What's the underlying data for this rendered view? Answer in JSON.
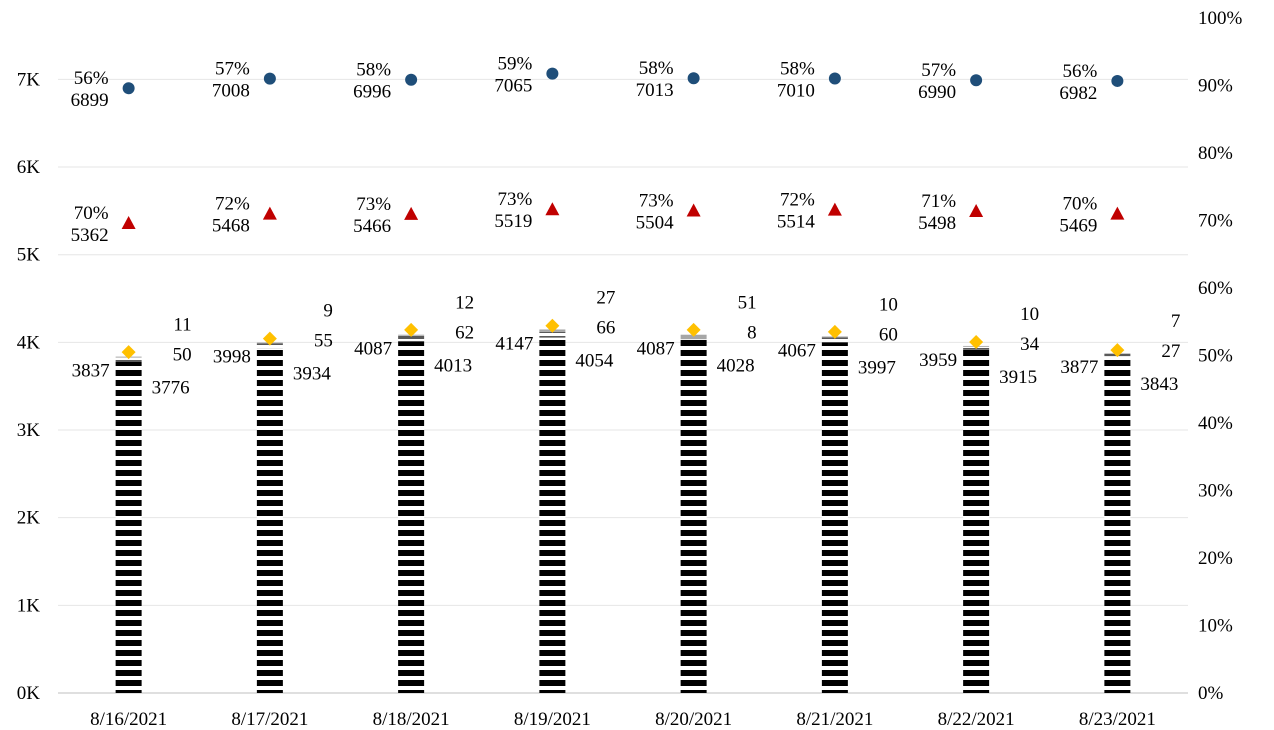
{
  "chart_data": {
    "type": "bar",
    "title": "",
    "xlabel": "",
    "ylabel": "",
    "categories": [
      "8/16/2021",
      "8/17/2021",
      "8/18/2021",
      "8/19/2021",
      "8/20/2021",
      "8/21/2021",
      "8/22/2021",
      "8/23/2021"
    ],
    "y_left": {
      "range": [
        0,
        7700
      ],
      "ticks": [
        0,
        1000,
        2000,
        3000,
        4000,
        5000,
        6000,
        7000
      ],
      "tick_labels": [
        "0K",
        "1K",
        "2K",
        "3K",
        "4K",
        "5K",
        "6K",
        "7K"
      ]
    },
    "y_right": {
      "range": [
        0,
        100
      ],
      "ticks": [
        0,
        10,
        20,
        30,
        40,
        50,
        60,
        70,
        80,
        90,
        100
      ],
      "tick_labels": [
        "0%",
        "10%",
        "20%",
        "30%",
        "40%",
        "50%",
        "60%",
        "70%",
        "80%",
        "90%",
        "100%"
      ]
    },
    "grid": true,
    "legend": "none",
    "bar_series": {
      "totals": [
        3837,
        3998,
        4087,
        4147,
        4087,
        4067,
        3959,
        3877
      ],
      "main": [
        3776,
        3934,
        4013,
        4054,
        4028,
        3997,
        3915,
        3843
      ],
      "middle": [
        50,
        55,
        62,
        66,
        8,
        60,
        34,
        27
      ],
      "top": [
        11,
        9,
        12,
        27,
        51,
        10,
        10,
        7
      ],
      "colors": {
        "main": "#000000",
        "middle": "#595959",
        "top": "#a6a6a6"
      }
    },
    "circle_series": {
      "values": [
        6899,
        7008,
        6996,
        7065,
        7013,
        7010,
        6990,
        6982
      ],
      "pct_labels": [
        "56%",
        "57%",
        "58%",
        "59%",
        "58%",
        "58%",
        "57%",
        "56%"
      ],
      "axis": "left",
      "color": "#1f4e79"
    },
    "triangle_series": {
      "values": [
        5362,
        5468,
        5466,
        5519,
        5504,
        5514,
        5498,
        5469
      ],
      "pct_labels": [
        "70%",
        "72%",
        "73%",
        "73%",
        "73%",
        "72%",
        "71%",
        "70%"
      ],
      "axis": "left",
      "color": "#c00000"
    },
    "diamond_series": {
      "values_pct": [
        50.5,
        52.5,
        53.8,
        54.4,
        53.8,
        53.5,
        52.0,
        50.8
      ],
      "axis": "right",
      "color": "#ffc000"
    }
  }
}
